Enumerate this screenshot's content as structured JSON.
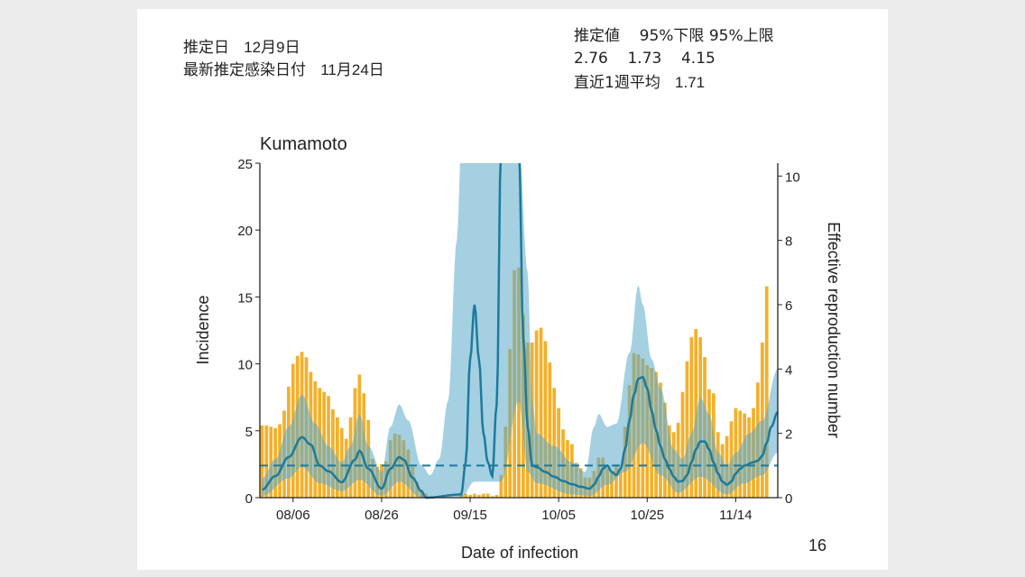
{
  "header": {
    "estimate_date_label": "推定日",
    "estimate_date_value": "12月9日",
    "latest_infection_label": "最新推定感染日付",
    "latest_infection_value": "11月24日",
    "col_estimate": "推定値",
    "col_lower": "95%下限",
    "col_upper": "95%上限",
    "estimate_value": "2.76",
    "lower_value": "1.73",
    "upper_value": "4.15",
    "weekly_avg_label": "直近1週平均",
    "weekly_avg_value": "1.71"
  },
  "page_number": "16",
  "colors": {
    "bars": "#f3b02a",
    "rt_line": "#1d7a9b",
    "ci_band": "#5aaacb",
    "background": "#ebebeb"
  },
  "chart_data": {
    "type": "bar+line",
    "title": "Kumamoto",
    "xlabel": "Date of infection",
    "ylabel": "Incidence",
    "y2label": "Effective reproduction number",
    "xlim_days": [
      -0.5,
      116.5
    ],
    "ylim": [
      0,
      25
    ],
    "y2lim": [
      0,
      10.4
    ],
    "x_ticks": [
      {
        "day": 7,
        "label": "08/06"
      },
      {
        "day": 27,
        "label": "08/26"
      },
      {
        "day": 47,
        "label": "09/15"
      },
      {
        "day": 67,
        "label": "10/05"
      },
      {
        "day": 87,
        "label": "10/25"
      },
      {
        "day": 107,
        "label": "11/14"
      }
    ],
    "y_ticks": [
      "0",
      "5",
      "10",
      "15",
      "20",
      "25"
    ],
    "y2_ticks": [
      "0",
      "2",
      "4",
      "6",
      "8",
      "10"
    ],
    "reference_line_rt": 1,
    "incidence": [
      5.4,
      5.4,
      5.3,
      5.2,
      5.5,
      6.5,
      8.3,
      10.0,
      10.6,
      10.9,
      10.5,
      9.4,
      8.7,
      8.2,
      7.9,
      7.6,
      6.6,
      6.0,
      5.2,
      4.4,
      6.0,
      8.2,
      9.2,
      7.8,
      5.8,
      2.9,
      2.3,
      2.5,
      2.7,
      4.3,
      4.8,
      4.7,
      4.3,
      3.6,
      2.3,
      1.2,
      0.6,
      0.3,
      0,
      0,
      0,
      0,
      0,
      0,
      0,
      0.2,
      0.3,
      0.2,
      0.3,
      0.2,
      0.3,
      0.3,
      0.1,
      0.2,
      1.7,
      5.3,
      11.1,
      17.0,
      17.2,
      13.7,
      11.6,
      11.6,
      12.5,
      12.7,
      11.7,
      10.1,
      8.2,
      6.7,
      5.1,
      4.3,
      4.0,
      2.6,
      2.2,
      1.5,
      1.5,
      2.0,
      3.0,
      3.0,
      2.2,
      2.0,
      2.5,
      2.2,
      5.3,
      8.4,
      10.8,
      10.7,
      10.4,
      9.9,
      9.7,
      9.4,
      8.6,
      7.1,
      5.4,
      4.9,
      5.6,
      7.9,
      10.2,
      12.0,
      12.6,
      12.0,
      10.5,
      8.1,
      7.8,
      4.9,
      4.0,
      4.6,
      5.7,
      6.7,
      6.5,
      6.3,
      6.0,
      6.7,
      8.6,
      11.6,
      15.8
    ],
    "rt": [
      [
        0,
        0.25
      ],
      [
        3,
        0.67
      ],
      [
        6,
        1.26
      ],
      [
        9,
        1.88
      ],
      [
        11,
        1.65
      ],
      [
        13,
        1.0
      ],
      [
        15,
        0.82
      ],
      [
        18,
        0.48
      ],
      [
        21,
        1.18
      ],
      [
        22,
        1.46
      ],
      [
        24,
        0.9
      ],
      [
        27,
        0.28
      ],
      [
        29,
        0.9
      ],
      [
        31,
        1.26
      ],
      [
        32,
        1.18
      ],
      [
        34,
        0.62
      ],
      [
        36,
        0.2
      ],
      [
        37,
        0
      ],
      [
        45,
        0.1
      ],
      [
        46,
        1.1
      ],
      [
        47,
        4.3
      ],
      [
        48,
        6.0
      ],
      [
        49,
        4.3
      ],
      [
        50,
        2.0
      ],
      [
        51,
        1.1
      ],
      [
        52,
        0.67
      ],
      [
        53,
        2.9
      ],
      [
        54,
        11
      ],
      [
        58,
        11
      ],
      [
        59,
        5
      ],
      [
        60,
        2.2
      ],
      [
        61,
        1.0
      ],
      [
        62,
        0.95
      ],
      [
        64,
        0.8
      ],
      [
        66,
        0.65
      ],
      [
        68,
        0.52
      ],
      [
        70,
        0.42
      ],
      [
        72,
        0.34
      ],
      [
        74,
        0.28
      ],
      [
        75,
        0.4
      ],
      [
        76,
        0.65
      ],
      [
        77,
        0.9
      ],
      [
        78,
        1.0
      ],
      [
        79,
        0.8
      ],
      [
        80,
        0.7
      ],
      [
        81,
        0.9
      ],
      [
        82,
        1.5
      ],
      [
        83,
        2.4
      ],
      [
        84,
        3.2
      ],
      [
        85,
        3.7
      ],
      [
        86,
        3.75
      ],
      [
        87,
        3.4
      ],
      [
        88,
        2.7
      ],
      [
        89,
        2.1
      ],
      [
        90,
        1.6
      ],
      [
        91,
        1.2
      ],
      [
        92,
        0.9
      ],
      [
        93,
        0.65
      ],
      [
        94,
        0.5
      ],
      [
        95,
        0.52
      ],
      [
        96,
        0.7
      ],
      [
        97,
        1.1
      ],
      [
        98,
        1.5
      ],
      [
        99,
        1.75
      ],
      [
        100,
        1.75
      ],
      [
        101,
        1.5
      ],
      [
        102,
        1.1
      ],
      [
        103,
        0.75
      ],
      [
        104,
        0.5
      ],
      [
        105,
        0.4
      ],
      [
        106,
        0.5
      ],
      [
        107,
        0.75
      ],
      [
        108,
        0.9
      ],
      [
        109,
        1.0
      ],
      [
        111,
        1.1
      ],
      [
        112,
        1.15
      ],
      [
        113,
        1.3
      ],
      [
        114,
        1.7
      ],
      [
        115,
        2.2
      ],
      [
        116.5,
        2.66
      ]
    ],
    "rt_upper": [
      [
        0,
        0.6
      ],
      [
        3,
        1.2
      ],
      [
        6,
        2.2
      ],
      [
        9,
        3.2
      ],
      [
        12,
        2.3
      ],
      [
        15,
        1.6
      ],
      [
        18,
        1.1
      ],
      [
        20,
        1.6
      ],
      [
        22,
        2.6
      ],
      [
        24,
        1.6
      ],
      [
        27,
        0.8
      ],
      [
        29,
        2.2
      ],
      [
        31,
        2.9
      ],
      [
        33,
        2.4
      ],
      [
        36,
        1.0
      ],
      [
        38,
        0.7
      ],
      [
        40,
        1.2
      ],
      [
        42,
        3
      ],
      [
        44,
        8
      ],
      [
        45,
        11
      ],
      [
        58,
        11
      ],
      [
        60,
        7
      ],
      [
        61,
        3
      ],
      [
        62,
        2.0
      ],
      [
        66,
        1.6
      ],
      [
        70,
        1.1
      ],
      [
        73,
        0.8
      ],
      [
        75,
        2.2
      ],
      [
        76,
        2.6
      ],
      [
        78,
        2.2
      ],
      [
        80,
        2.3
      ],
      [
        83,
        4.5
      ],
      [
        85,
        6.6
      ],
      [
        86,
        6.0
      ],
      [
        88,
        4.3
      ],
      [
        90,
        3.4
      ],
      [
        93,
        1.5
      ],
      [
        95,
        1.2
      ],
      [
        97,
        2.0
      ],
      [
        99,
        3.1
      ],
      [
        101,
        2.6
      ],
      [
        103,
        1.4
      ],
      [
        105,
        1.0
      ],
      [
        107,
        1.4
      ],
      [
        110,
        2.0
      ],
      [
        113,
        2.4
      ],
      [
        116.5,
        4.0
      ]
    ],
    "rt_lower": [
      [
        0,
        0.05
      ],
      [
        6,
        0.6
      ],
      [
        9,
        0.95
      ],
      [
        13,
        0.45
      ],
      [
        18,
        0.2
      ],
      [
        22,
        0.55
      ],
      [
        27,
        0.05
      ],
      [
        31,
        0.5
      ],
      [
        36,
        0
      ],
      [
        45,
        0
      ],
      [
        48,
        0.5
      ],
      [
        54,
        0.5
      ],
      [
        58,
        3
      ],
      [
        60,
        0.8
      ],
      [
        62,
        0.45
      ],
      [
        70,
        0.1
      ],
      [
        74,
        0.05
      ],
      [
        78,
        0.4
      ],
      [
        82,
        0.8
      ],
      [
        86,
        1.7
      ],
      [
        90,
        0.7
      ],
      [
        94,
        0.15
      ],
      [
        99,
        0.65
      ],
      [
        105,
        0.1
      ],
      [
        109,
        0.45
      ],
      [
        113,
        0.7
      ],
      [
        116.5,
        1.4
      ]
    ]
  }
}
